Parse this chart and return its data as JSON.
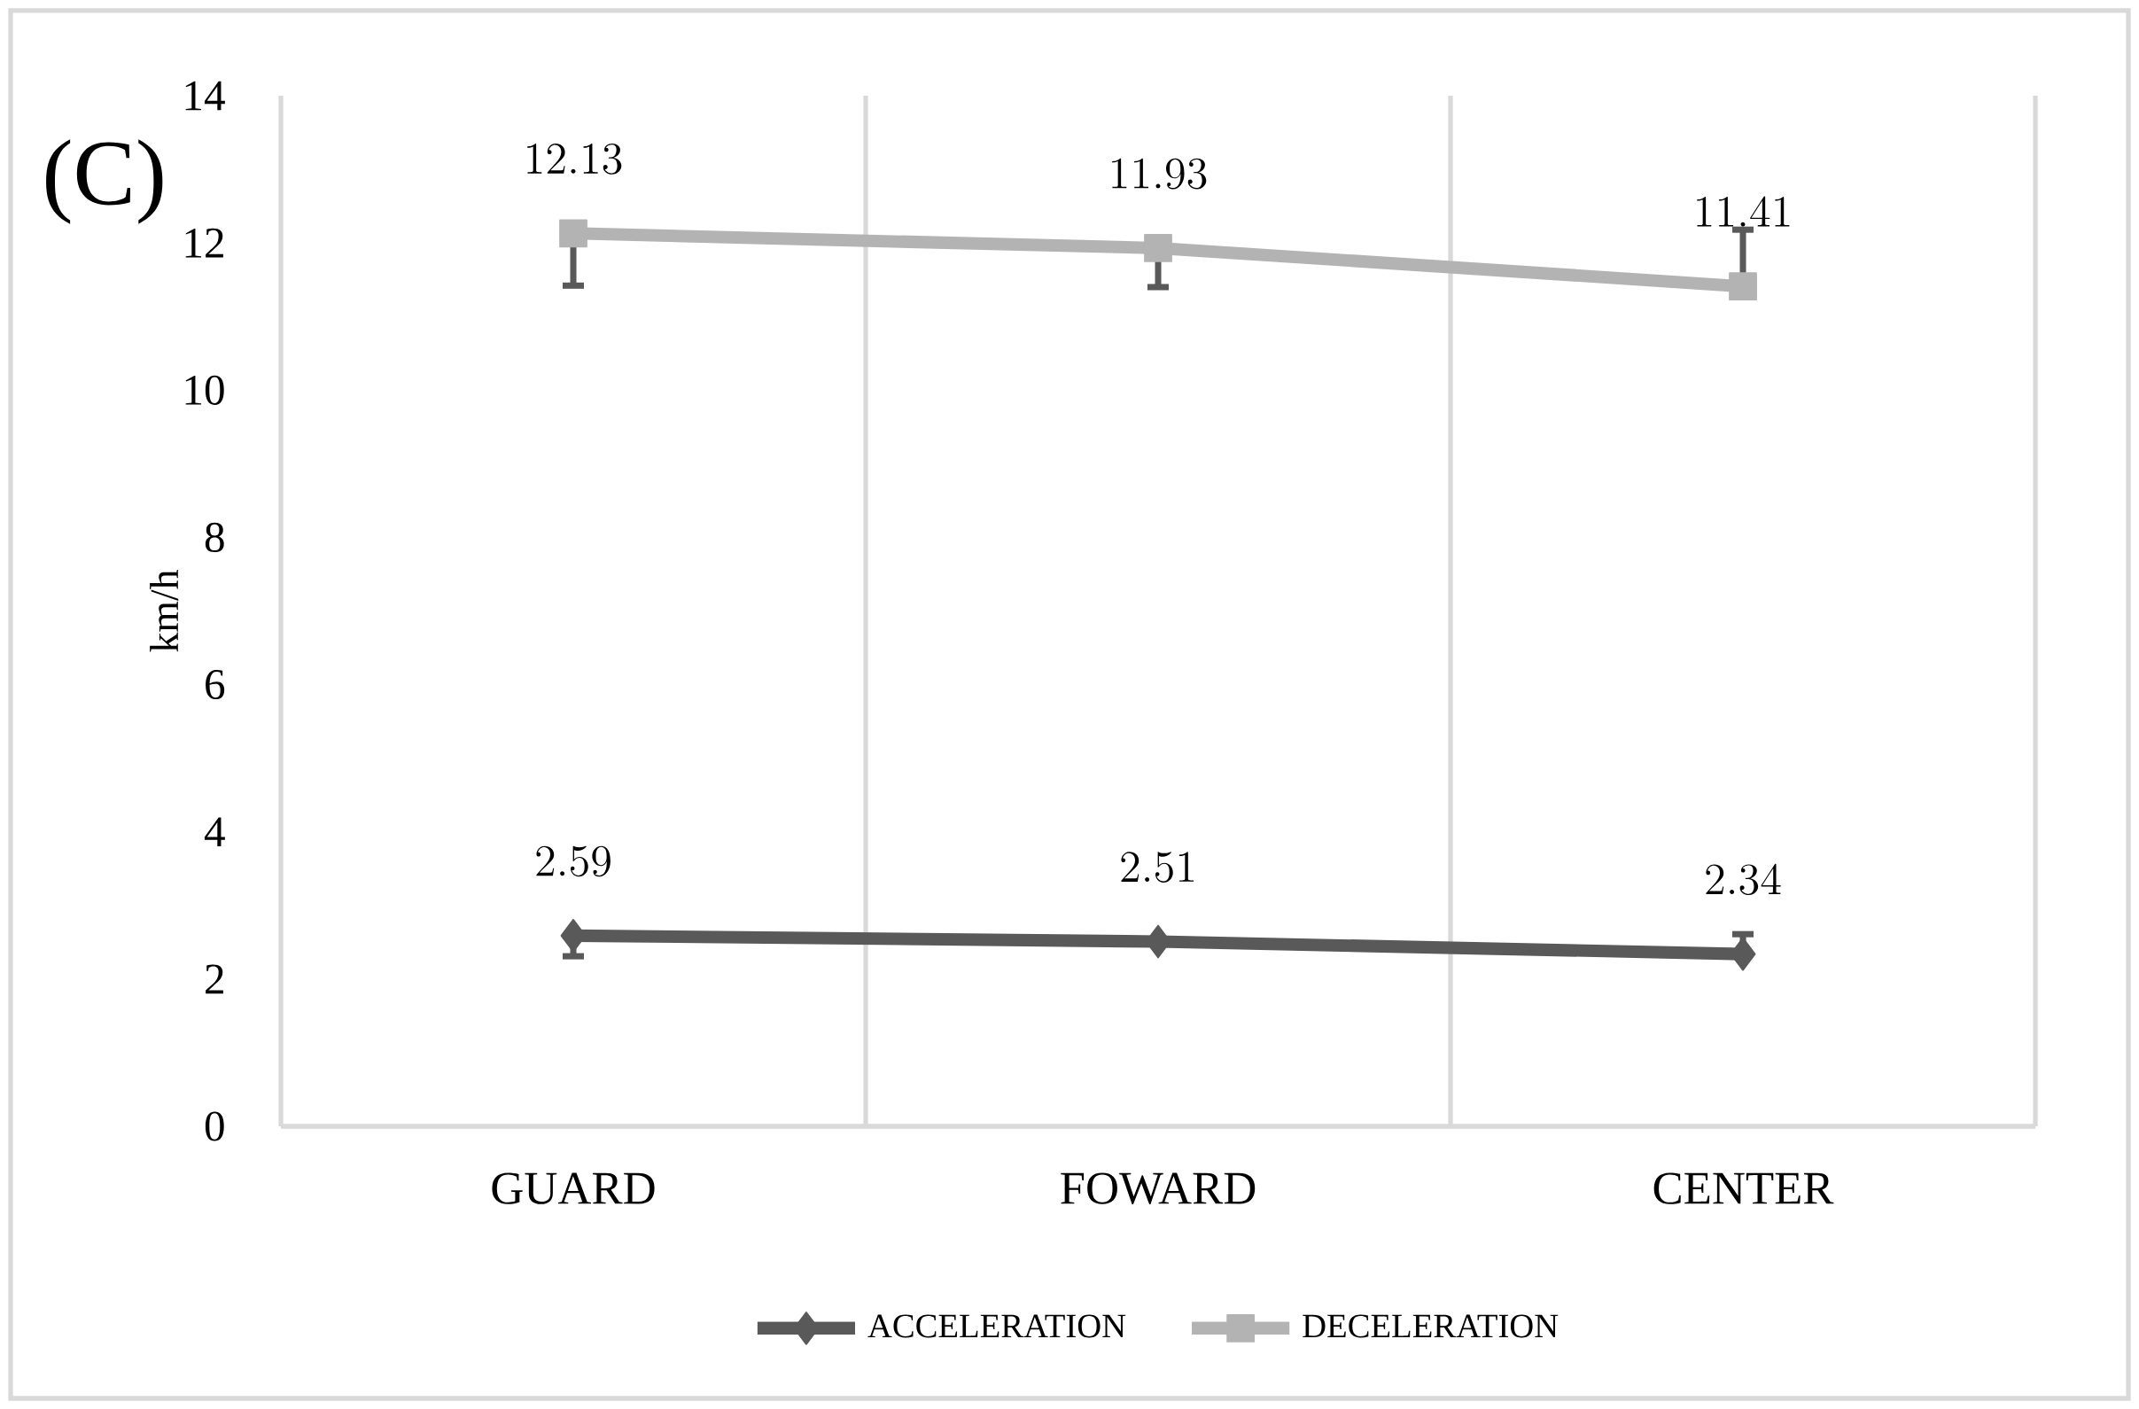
{
  "chart_data": {
    "type": "line",
    "ylabel": "km/h",
    "annotations": [
      "(C)"
    ],
    "categories": [
      "GUARD",
      "FOWARD",
      "CENTER"
    ],
    "series": [
      {
        "name": "ACCELERATION",
        "color": "#595959",
        "marker": "diamond",
        "values": [
          2.59,
          2.51,
          2.34
        ],
        "errors": [
          [
            2.31,
            2.59
          ],
          null,
          [
            2.34,
            2.61
          ]
        ]
      },
      {
        "name": "DECELERATION",
        "color": "#b3b3b3",
        "marker": "square",
        "values": [
          12.13,
          11.93,
          11.41
        ],
        "errors": [
          [
            11.42,
            12.13
          ],
          [
            11.4,
            11.93
          ],
          [
            11.41,
            12.18
          ]
        ]
      }
    ],
    "ylim": [
      0,
      14
    ],
    "yticks": [
      0,
      2,
      4,
      6,
      8,
      10,
      12,
      14
    ],
    "grid": "x",
    "legend": "bottom",
    "data_labels": true,
    "line_style": "solid"
  }
}
